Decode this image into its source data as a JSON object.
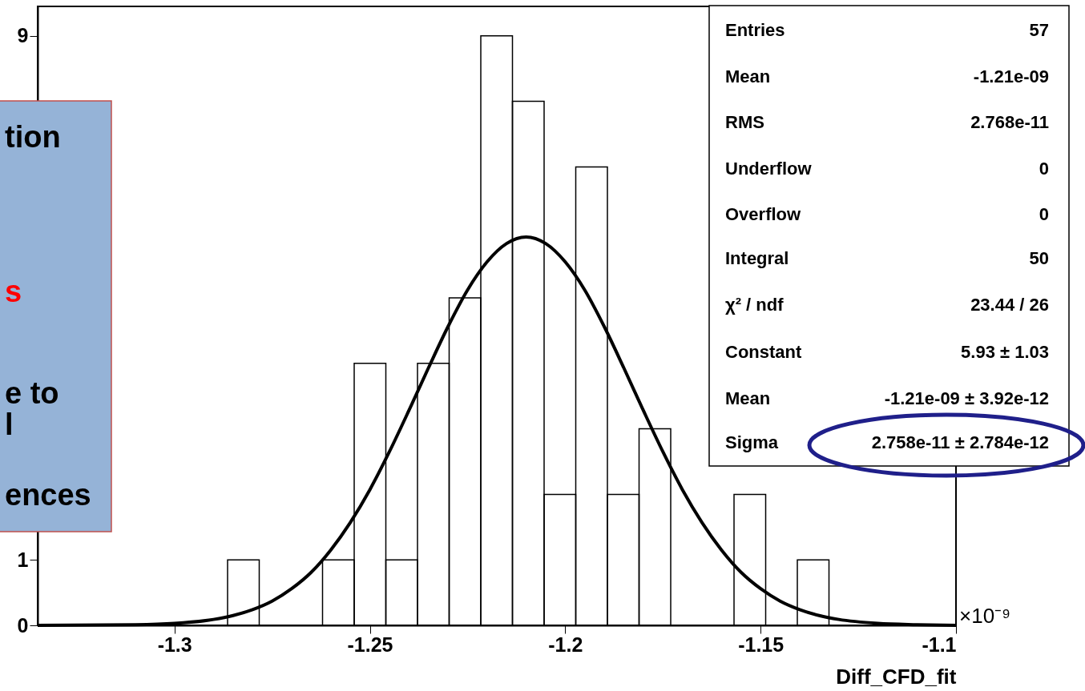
{
  "chart_data": {
    "type": "histogram",
    "xlabel": "Diff_CFD_fit",
    "bins": [
      -1.335,
      -1.3269,
      -1.3188,
      -1.3107,
      -1.3026,
      -1.2945,
      -1.2864,
      -1.2783,
      -1.2702,
      -1.2621,
      -1.254,
      -1.2459,
      -1.2378,
      -1.2297,
      -1.2216,
      -1.2135,
      -1.2054,
      -1.1973,
      -1.1892,
      -1.1811,
      -1.173,
      -1.1649,
      -1.1568,
      -1.1487,
      -1.1406,
      -1.1325,
      -1.1244,
      -1.1163,
      -1.1082,
      -1.1
    ],
    "series": [
      {
        "color": "#000000",
        "values": [
          0,
          0,
          0,
          0,
          0,
          0,
          1,
          0,
          0,
          1,
          4,
          1,
          4,
          5,
          9,
          8,
          2,
          7,
          2,
          3,
          0,
          0,
          2,
          0,
          1,
          0,
          0,
          0,
          0
        ]
      },
      {
        "type": "line",
        "color": "#000000",
        "x": [
          -1.335,
          -1.31,
          -1.3,
          -1.29,
          -1.285,
          -1.28,
          -1.275,
          -1.27,
          -1.265,
          -1.26,
          -1.255,
          -1.25,
          -1.245,
          -1.24,
          -1.235,
          -1.23,
          -1.225,
          -1.22,
          -1.215,
          -1.21,
          -1.205,
          -1.2,
          -1.195,
          -1.19,
          -1.185,
          -1.18,
          -1.175,
          -1.17,
          -1.165,
          -1.16,
          -1.155,
          -1.15,
          -1.145,
          -1.14,
          -1.135,
          -1.13,
          -1.12,
          -1.11,
          -1.1
        ],
        "values": [
          0,
          0.01,
          0.03,
          0.09,
          0.15,
          0.24,
          0.37,
          0.56,
          0.81,
          1.15,
          1.57,
          2.07,
          2.65,
          3.28,
          3.93,
          4.56,
          5.12,
          5.55,
          5.83,
          5.93,
          5.83,
          5.55,
          5.12,
          4.56,
          3.93,
          3.28,
          2.65,
          2.07,
          1.57,
          1.15,
          0.81,
          0.56,
          0.37,
          0.24,
          0.15,
          0.09,
          0.03,
          0.01,
          0
        ]
      }
    ],
    "xlim": [
      -1.335,
      -1.1
    ],
    "ylim": [
      0,
      9.45
    ],
    "xticks": [
      -1.3,
      -1.25,
      -1.2,
      -1.15,
      -1.1
    ],
    "yticks": [
      0,
      1,
      9
    ],
    "grid": false,
    "marker": "none",
    "line_style": "solid",
    "annotations": [
      "Entries",
      "57",
      "Mean",
      "-1.21e-09",
      "RMS",
      "2.768e-11",
      "Underflow",
      "0",
      "Overflow",
      "0",
      "Integral",
      "50",
      "χ² / ndf",
      "23.44 / 26",
      "Constant",
      "5.93 ± 1.03",
      "Mean",
      "-1.21e-09 ± 3.92e-12",
      "Sigma",
      "2.758e-11 ± 2.784e-12",
      "×10⁻⁹",
      "tion",
      "s",
      "e to",
      "l",
      "ences"
    ]
  }
}
